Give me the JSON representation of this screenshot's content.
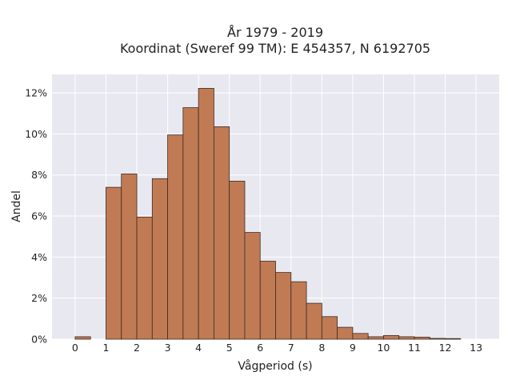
{
  "chart_data": {
    "type": "bar",
    "title": "År 1979 - 2019",
    "subtitle": "Koordinat (Sweref 99 TM): E 454357, N 6192705",
    "xlabel": "Vågperiod (s)",
    "ylabel": "Andel",
    "xlim": [
      -0.75,
      13.75
    ],
    "ylim": [
      0,
      12.9
    ],
    "x_ticks": [
      0,
      1,
      2,
      3,
      4,
      5,
      6,
      7,
      8,
      9,
      10,
      11,
      12,
      13
    ],
    "y_ticks": [
      0,
      2,
      4,
      6,
      8,
      10,
      12
    ],
    "y_tick_labels": [
      "0%",
      "2%",
      "4%",
      "6%",
      "8%",
      "10%",
      "12%"
    ],
    "bin_width": 0.5,
    "bins": [
      {
        "start": 0.0,
        "value": 0.12
      },
      {
        "start": 1.0,
        "value": 7.4
      },
      {
        "start": 1.5,
        "value": 8.05
      },
      {
        "start": 2.0,
        "value": 5.95
      },
      {
        "start": 2.5,
        "value": 7.82
      },
      {
        "start": 3.0,
        "value": 9.95
      },
      {
        "start": 3.5,
        "value": 11.28
      },
      {
        "start": 4.0,
        "value": 12.22
      },
      {
        "start": 4.5,
        "value": 10.35
      },
      {
        "start": 5.0,
        "value": 7.7
      },
      {
        "start": 5.5,
        "value": 5.2
      },
      {
        "start": 6.0,
        "value": 3.8
      },
      {
        "start": 6.5,
        "value": 3.25
      },
      {
        "start": 7.0,
        "value": 2.8
      },
      {
        "start": 7.5,
        "value": 1.75
      },
      {
        "start": 8.0,
        "value": 1.1
      },
      {
        "start": 8.5,
        "value": 0.58
      },
      {
        "start": 9.0,
        "value": 0.28
      },
      {
        "start": 9.5,
        "value": 0.12
      },
      {
        "start": 10.0,
        "value": 0.18
      },
      {
        "start": 10.5,
        "value": 0.12
      },
      {
        "start": 11.0,
        "value": 0.1
      },
      {
        "start": 11.5,
        "value": 0.04
      },
      {
        "start": 12.0,
        "value": 0.03
      }
    ],
    "grid": true,
    "legend": "none",
    "colors": {
      "bar_fill": "#c07b55",
      "bar_edge": "#3d2a20",
      "plot_background": "#e8e8f0",
      "grid": "#ffffff"
    }
  }
}
